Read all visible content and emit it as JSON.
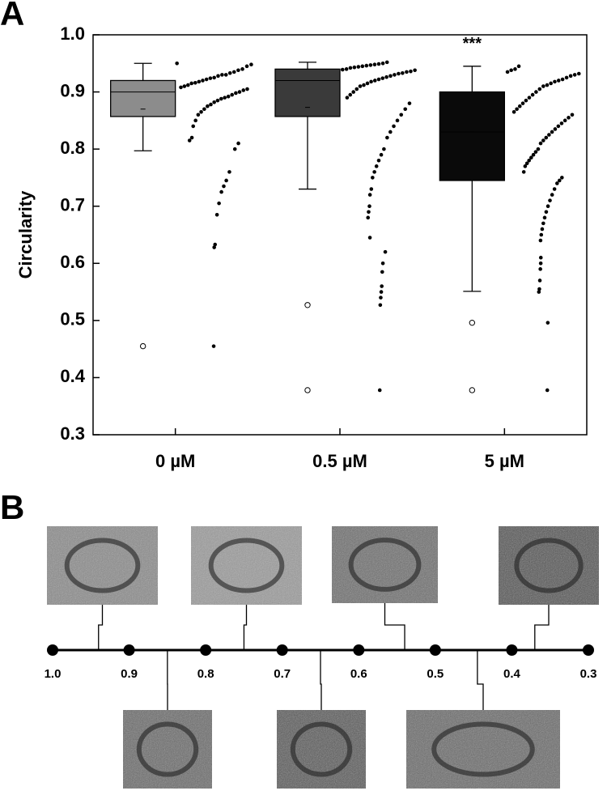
{
  "panels": {
    "a": "A",
    "b": "B"
  },
  "chart_data": {
    "type": "box",
    "y_label": "Circularity",
    "categories": [
      "0 µM",
      "0.5 µM",
      "5 µM"
    ],
    "ylim": [
      0.3,
      1.0
    ],
    "yticks": [
      0.3,
      0.4,
      0.5,
      0.6,
      0.7,
      0.8,
      0.9,
      {
        "value": 1.0,
        "label": "1.0"
      }
    ],
    "significance": [
      null,
      null,
      "***"
    ],
    "point_color": "#000000",
    "boxes": [
      {
        "color": "#8c8c8c",
        "whisker_low": 0.797,
        "q1": 0.857,
        "median": 0.9,
        "q3": 0.92,
        "whisker_high": 0.95,
        "mean": 0.87,
        "outliers": [
          0.455
        ]
      },
      {
        "color": "#3a3a3a",
        "whisker_low": 0.73,
        "q1": 0.857,
        "median": 0.92,
        "q3": 0.94,
        "whisker_high": 0.952,
        "mean": 0.873,
        "outliers": [
          0.527,
          0.378
        ]
      },
      {
        "color": "#0a0a0a",
        "whisker_low": 0.551,
        "q1": 0.745,
        "median": 0.83,
        "q3": 0.9,
        "whisker_high": 0.945,
        "mean": 0.83,
        "outliers": [
          0.496,
          0.378
        ]
      }
    ],
    "points": [
      [
        0.95,
        0.948,
        0.945,
        0.94,
        0.938,
        0.935,
        0.933,
        0.93,
        0.93,
        0.928,
        0.925,
        0.924,
        0.922,
        0.92,
        0.918,
        0.916,
        0.915,
        0.912,
        0.91,
        0.908,
        0.905,
        0.903,
        0.9,
        0.898,
        0.895,
        0.892,
        0.89,
        0.888,
        0.885,
        0.882,
        0.878,
        0.875,
        0.87,
        0.865,
        0.86,
        0.85,
        0.84,
        0.82,
        0.815,
        0.81,
        0.8,
        0.76,
        0.745,
        0.735,
        0.725,
        0.705,
        0.685,
        0.633,
        0.628,
        0.455
      ],
      [
        0.952,
        0.95,
        0.949,
        0.948,
        0.947,
        0.946,
        0.945,
        0.944,
        0.943,
        0.942,
        0.94,
        0.939,
        0.938,
        0.936,
        0.935,
        0.933,
        0.932,
        0.93,
        0.928,
        0.926,
        0.924,
        0.922,
        0.92,
        0.918,
        0.915,
        0.912,
        0.91,
        0.905,
        0.9,
        0.895,
        0.89,
        0.88,
        0.87,
        0.86,
        0.85,
        0.84,
        0.83,
        0.82,
        0.8,
        0.79,
        0.78,
        0.77,
        0.76,
        0.75,
        0.73,
        0.72,
        0.7,
        0.69,
        0.68,
        0.645,
        0.62,
        0.6,
        0.585,
        0.56,
        0.55,
        0.54,
        0.527,
        0.378
      ],
      [
        0.945,
        0.94,
        0.938,
        0.935,
        0.932,
        0.93,
        0.928,
        0.925,
        0.922,
        0.92,
        0.918,
        0.915,
        0.912,
        0.91,
        0.905,
        0.9,
        0.895,
        0.89,
        0.885,
        0.88,
        0.875,
        0.87,
        0.865,
        0.86,
        0.855,
        0.85,
        0.845,
        0.84,
        0.835,
        0.83,
        0.825,
        0.82,
        0.815,
        0.81,
        0.8,
        0.795,
        0.79,
        0.785,
        0.78,
        0.775,
        0.77,
        0.76,
        0.75,
        0.745,
        0.74,
        0.73,
        0.72,
        0.71,
        0.7,
        0.69,
        0.68,
        0.67,
        0.66,
        0.65,
        0.64,
        0.61,
        0.6,
        0.59,
        0.57,
        0.555,
        0.55,
        0.496,
        0.378
      ]
    ]
  },
  "scale": {
    "xlim": [
      1.0,
      0.3
    ],
    "xticks": [
      {
        "value": 1.0,
        "label": "1.0"
      },
      0.9,
      0.8,
      0.7,
      0.6,
      0.5,
      0.4,
      0.3
    ],
    "images": [
      {
        "position": "top",
        "circularity": 0.94
      },
      {
        "position": "top",
        "circularity": 0.75
      },
      {
        "position": "top",
        "circularity": 0.54
      },
      {
        "position": "top",
        "circularity": 0.37
      },
      {
        "position": "bottom",
        "circularity": 0.85
      },
      {
        "position": "bottom",
        "circularity": 0.65
      },
      {
        "position": "bottom",
        "circularity": 0.445
      }
    ]
  }
}
